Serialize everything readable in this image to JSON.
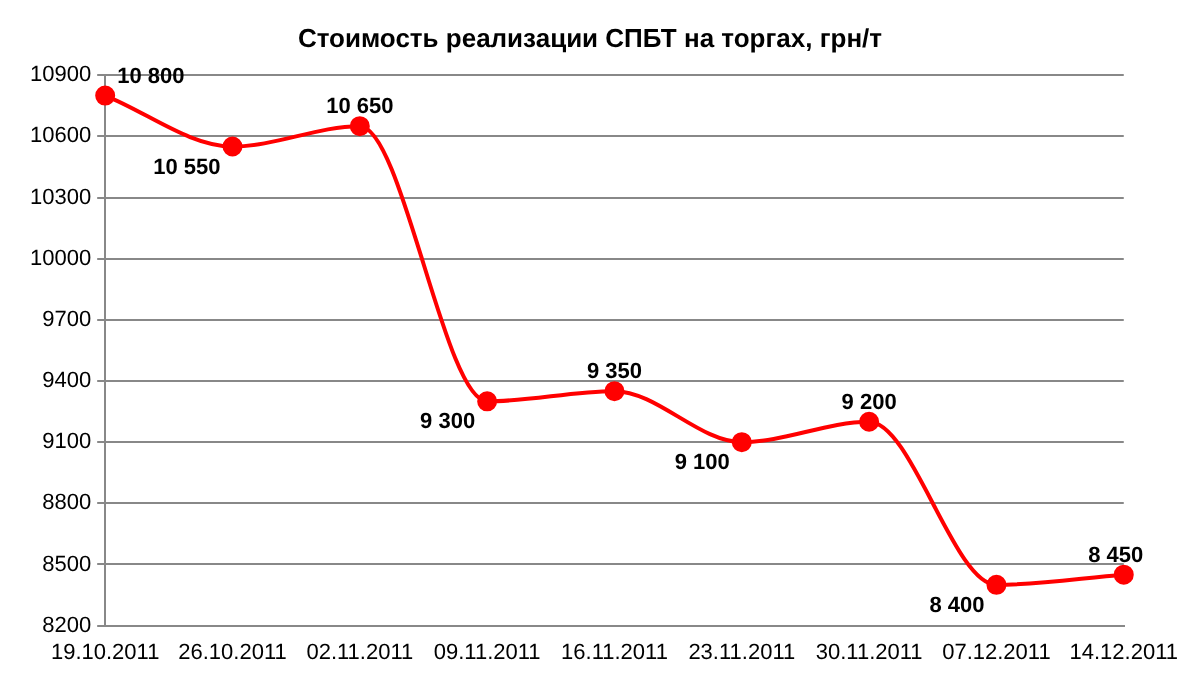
{
  "chart_data": {
    "type": "line",
    "title": "Стоимость реализации СПБТ на торгах, грн/т",
    "categories": [
      "19.10.2011",
      "26.10.2011",
      "02.11.2011",
      "09.11.2011",
      "16.11.2011",
      "23.11.2011",
      "30.11.2011",
      "07.12.2011",
      "14.12.2011"
    ],
    "series": [
      {
        "color": "#ff0000",
        "values": [
          10800,
          10550,
          10650,
          9300,
          9350,
          9100,
          9200,
          8400,
          8450
        ],
        "value_labels": [
          "10 800",
          "10 550",
          "10 650",
          "9 300",
          "9 350",
          "9 100",
          "9 200",
          "8 400",
          "8 450"
        ]
      }
    ],
    "ylim": [
      8200,
      10900
    ],
    "yticks": [
      8200,
      8500,
      8800,
      9100,
      9400,
      9700,
      10000,
      10300,
      10600,
      10900
    ],
    "grid": "y",
    "legend": false,
    "marker": "circle",
    "line_style": "solid"
  }
}
